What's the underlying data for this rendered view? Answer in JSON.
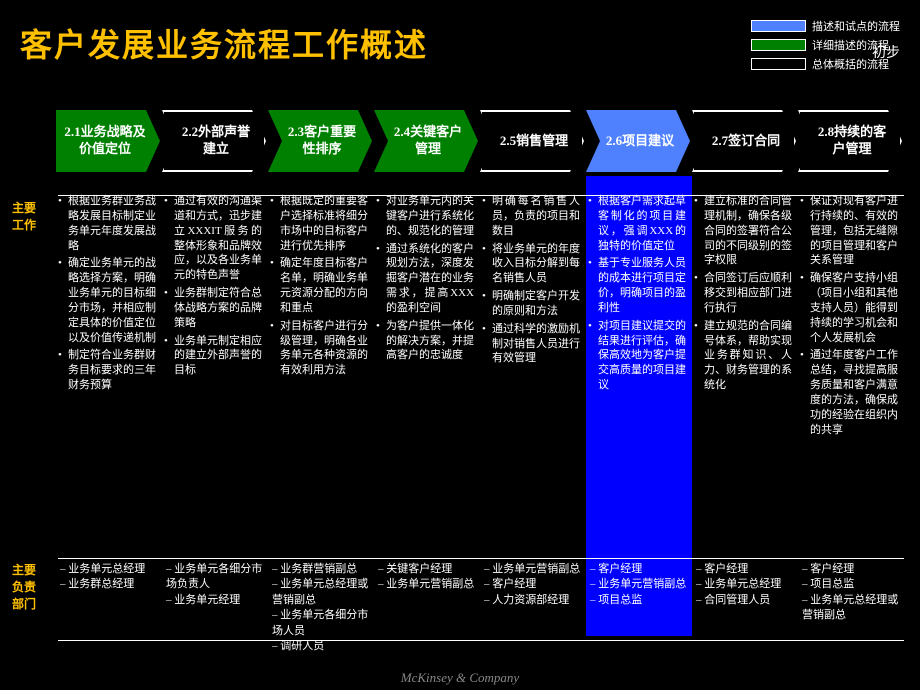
{
  "title": "客户发展业务流程工作概述",
  "stage": "初步",
  "colors": {
    "green": "#008000",
    "blue": "#4f81ff",
    "deepblue": "#0000ff",
    "black": "#000000",
    "gold": "#ffc000",
    "border": "#ffffff"
  },
  "legend": [
    {
      "label": "描述和试点的流程",
      "fill": "#4f81ff"
    },
    {
      "label": "详细描述的流程",
      "fill": "#008000"
    },
    {
      "label": "总体概括的流程",
      "fill": "#000000"
    }
  ],
  "chevrons": [
    {
      "label": "2.1业务战略及价值定位",
      "bg": "#008000"
    },
    {
      "label": "2.2外部声誉建立",
      "bg": "#000000"
    },
    {
      "label": "2.3客户重要性排序",
      "bg": "#008000"
    },
    {
      "label": "2.4关键客户管理",
      "bg": "#008000"
    },
    {
      "label": "2.5销售管理",
      "bg": "#000000"
    },
    {
      "label": "2.6项目建议",
      "bg": "#4f81ff"
    },
    {
      "label": "2.7签订合同",
      "bg": "#000000"
    },
    {
      "label": "2.8持续的客户管理",
      "bg": "#000000"
    }
  ],
  "rowLabels": {
    "work": "主要工作",
    "dept": "主要负责部门"
  },
  "highlight": {
    "column": 5,
    "fill": "#0000ff"
  },
  "work": [
    [
      "根据业务群业务战略发展目标制定业务单元年度发展战略",
      "确定业务单元的战略选择方案，明确业务单元的目标细分市场，并相应制定具体的价值定位以及价值传递机制",
      "制定符合业务群财务目标要求的三年财务预算"
    ],
    [
      "通过有效的沟通渠道和方式，迅步建立XXXIT服务的整体形象和品牌效应，以及各业务单元的特色声誉",
      "业务群制定符合总体战略方案的品牌策略",
      "业务单元制定相应的建立外部声誉的目标"
    ],
    [
      "根据既定的重要客户选择标准将细分市场中的目标客户进行优先排序",
      "确定年度目标客户名单，明确业务单元资源分配的方向和重点",
      "对目标客户进行分级管理，明确各业务单元各种资源的有效利用方法"
    ],
    [
      "对业务单元内的关键客户进行系统化的、规范化的管理",
      "通过系统化的客户规划方法，深度发掘客户潜在的业务需求，提高XXX的盈利空间",
      "为客户提供一体化的解决方案，并提高客户的忠诚度"
    ],
    [
      "明确每名销售人员，负责的项目和数目",
      "将业务单元的年度收入目标分解到每名销售人员",
      "明确制定客户开发的原则和方法",
      "通过科学的激励机制对销售人员进行有效管理"
    ],
    [
      "根据客户需求起草客制化的项目建议，强调XXX的独特的价值定位",
      "基于专业服务人员的成本进行项目定价，明确项目的盈利性",
      "对项目建议提交的结果进行评估，确保高效地为客户提交高质量的项目建议"
    ],
    [
      "建立标准的合同管理机制，确保各级合同的签署符合公司的不同级别的签字权限",
      "合同签订后应顺利移交到相应部门进行执行",
      "建立规范的合同编号体系，帮助实现业务群知识、人力、财务管理的系统化"
    ],
    [
      "保证对现有客户进行持续的、有效的管理，包括无缝隙的项目管理和客户关系管理",
      "确保客户支持小组（项目小组和其他支持人员）能得到持续的学习机会和个人发展机会",
      "通过年度客户工作总结，寻找提高服务质量和客户满意度的方法，确保成功的经验在组织内的共享"
    ]
  ],
  "roles": [
    [
      "业务单元总经理",
      "业务群总经理"
    ],
    [
      "业务单元各细分市场负责人",
      "业务单元经理"
    ],
    [
      "业务群营销副总",
      "业务单元总经理或营销副总",
      "业务单元各细分市场人员",
      "调研人员"
    ],
    [
      "关键客户经理",
      "业务单元营销副总"
    ],
    [
      "业务单元营销副总",
      "客户经理",
      "人力资源部经理"
    ],
    [
      "客户经理",
      "业务单元营销副总",
      "项目总监"
    ],
    [
      "客户经理",
      "业务单元总经理",
      "合同管理人员"
    ],
    [
      "客户经理",
      "项目总监",
      "业务单元总经理或营销副总"
    ]
  ],
  "footer": "McKinsey & Company"
}
